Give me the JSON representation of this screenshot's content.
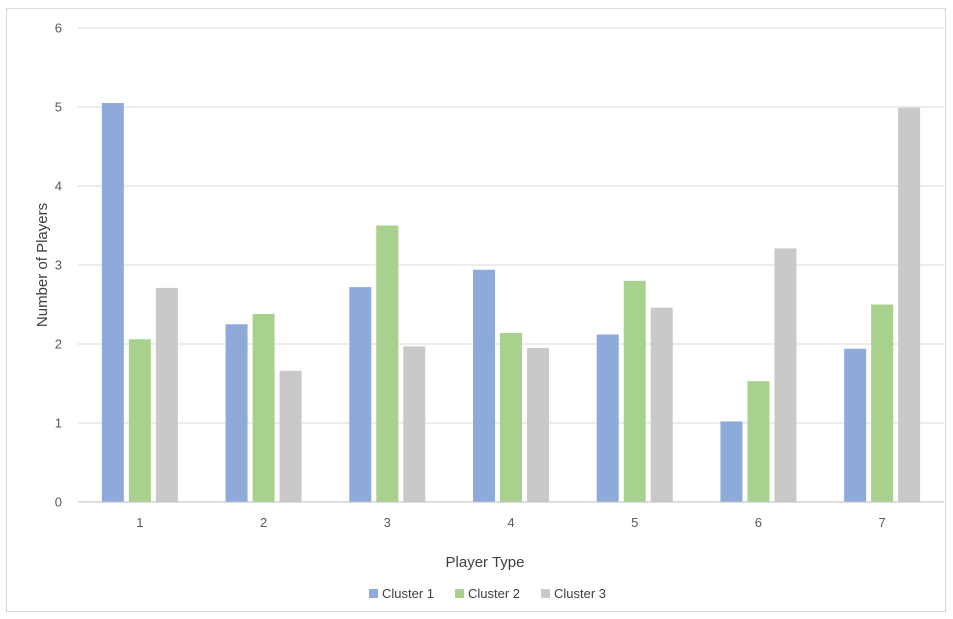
{
  "chart_data": {
    "type": "bar",
    "title": "",
    "xlabel": "Player Type",
    "ylabel": "Number of Players",
    "categories": [
      "1",
      "2",
      "3",
      "4",
      "5",
      "6",
      "7"
    ],
    "ylim": [
      0,
      6
    ],
    "yticks": [
      0,
      1,
      2,
      3,
      4,
      5,
      6
    ],
    "grid": true,
    "legend_position": "bottom",
    "series": [
      {
        "name": "Cluster 1",
        "color": "#8eaadb",
        "values": [
          5.05,
          2.25,
          2.72,
          2.94,
          2.12,
          1.02,
          1.94
        ]
      },
      {
        "name": "Cluster 2",
        "color": "#a9d18e",
        "values": [
          2.06,
          2.38,
          3.5,
          2.14,
          2.8,
          1.53,
          2.5
        ]
      },
      {
        "name": "Cluster 3",
        "color": "#c9c9c9",
        "values": [
          2.71,
          1.66,
          1.97,
          1.95,
          2.46,
          3.21,
          4.99
        ]
      }
    ]
  }
}
